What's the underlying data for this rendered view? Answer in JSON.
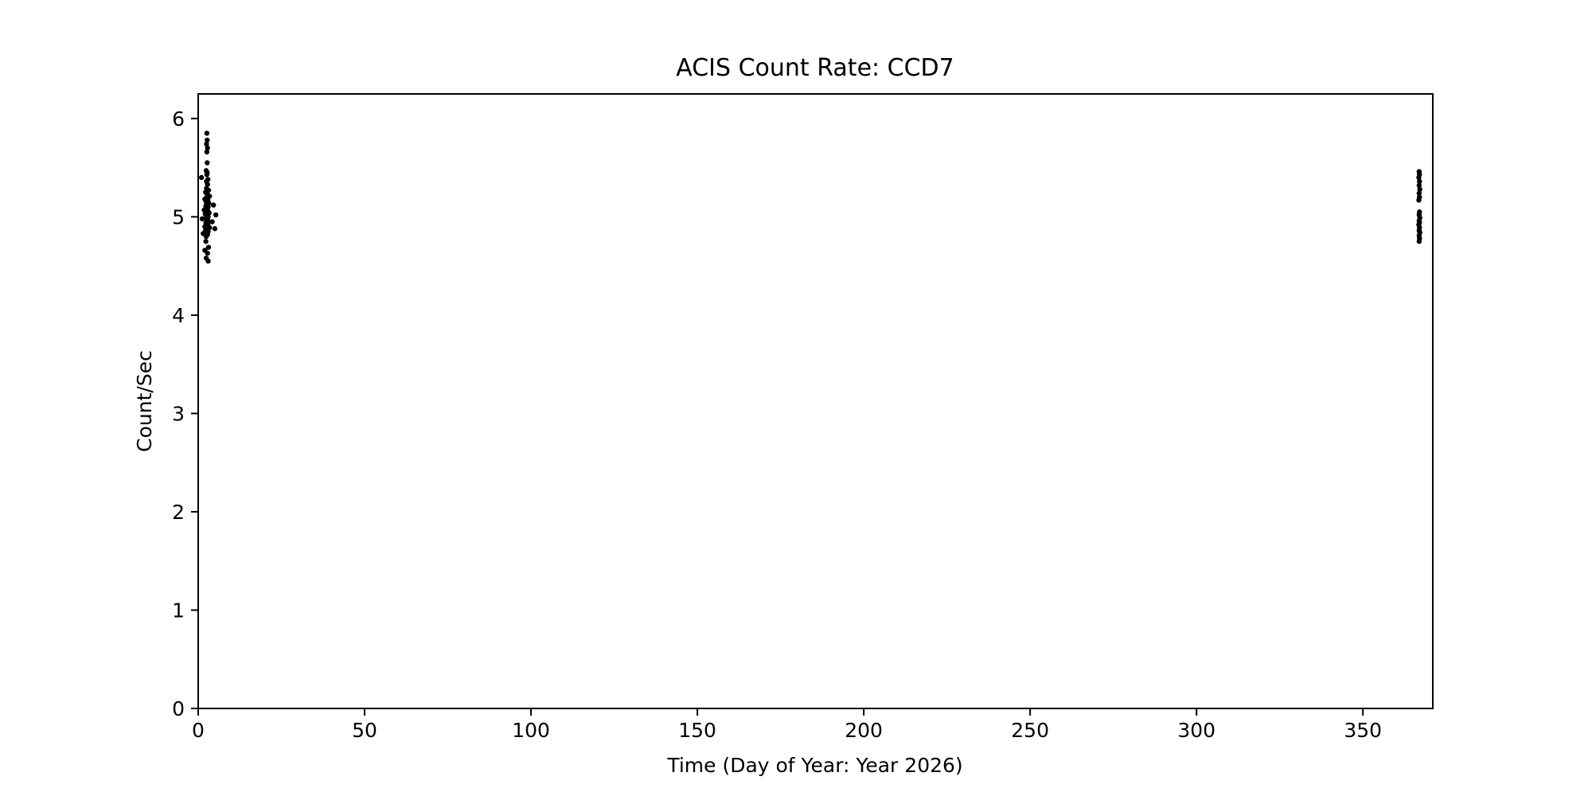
{
  "figure": {
    "background": "#ffffff",
    "foreground": "#000000"
  },
  "chart_data": {
    "type": "scatter",
    "title": "ACIS Count Rate: CCD7",
    "xlabel": "Time (Day of Year: Year 2026)",
    "ylabel": "Count/Sec",
    "xlim": [
      0,
      371
    ],
    "ylim": [
      0,
      6.25
    ],
    "xticks": [
      0,
      50,
      100,
      150,
      200,
      250,
      300,
      350
    ],
    "yticks": [
      0,
      1,
      2,
      3,
      4,
      5,
      6
    ],
    "grid": false,
    "legend": "none",
    "marker": {
      "shape": "dot",
      "color": "#000000",
      "radius_px": 3.2
    },
    "series": [
      {
        "name": "CCD7 count rate",
        "points": [
          [
            2.6,
            5.85
          ],
          [
            2.7,
            5.78
          ],
          [
            2.5,
            5.74
          ],
          [
            2.8,
            5.7
          ],
          [
            2.6,
            5.66
          ],
          [
            2.7,
            5.55
          ],
          [
            1.0,
            5.4
          ],
          [
            2.4,
            5.47
          ],
          [
            2.7,
            5.45
          ],
          [
            2.6,
            5.43
          ],
          [
            2.9,
            5.38
          ],
          [
            2.5,
            5.36
          ],
          [
            2.8,
            5.33
          ],
          [
            2.5,
            5.29
          ],
          [
            3.1,
            5.27
          ],
          [
            2.2,
            5.25
          ],
          [
            2.8,
            5.23
          ],
          [
            3.4,
            5.21
          ],
          [
            2.6,
            5.2
          ],
          [
            2.0,
            5.18
          ],
          [
            2.9,
            5.17
          ],
          [
            2.4,
            5.15
          ],
          [
            3.2,
            5.14
          ],
          [
            2.7,
            5.13
          ],
          [
            2.3,
            5.11
          ],
          [
            3.0,
            5.1
          ],
          [
            2.6,
            5.08
          ],
          [
            1.8,
            5.07
          ],
          [
            2.9,
            5.06
          ],
          [
            2.5,
            5.05
          ],
          [
            3.3,
            5.04
          ],
          [
            2.1,
            5.03
          ],
          [
            2.7,
            5.02
          ],
          [
            3.0,
            5.0
          ],
          [
            2.4,
            4.99
          ],
          [
            1.2,
            4.98
          ],
          [
            2.8,
            4.97
          ],
          [
            2.6,
            4.96
          ],
          [
            3.1,
            4.95
          ],
          [
            2.3,
            4.94
          ],
          [
            2.9,
            4.92
          ],
          [
            2.5,
            4.91
          ],
          [
            2.0,
            4.9
          ],
          [
            3.4,
            4.89
          ],
          [
            2.7,
            4.88
          ],
          [
            2.2,
            4.86
          ],
          [
            3.0,
            4.85
          ],
          [
            2.6,
            4.84
          ],
          [
            1.5,
            4.83
          ],
          [
            2.8,
            4.82
          ],
          [
            2.4,
            4.8
          ],
          [
            4.6,
            5.12
          ],
          [
            5.3,
            5.02
          ],
          [
            4.2,
            4.95
          ],
          [
            5.0,
            4.88
          ],
          [
            2.3,
            4.75
          ],
          [
            3.1,
            4.69
          ],
          [
            2.0,
            4.66
          ],
          [
            2.8,
            4.63
          ],
          [
            2.4,
            4.58
          ],
          [
            3.0,
            4.55
          ],
          [
            366.9,
            5.46
          ],
          [
            367.0,
            5.43
          ],
          [
            366.8,
            5.4
          ],
          [
            367.0,
            5.36
          ],
          [
            366.9,
            5.32
          ],
          [
            367.1,
            5.28
          ],
          [
            366.9,
            5.24
          ],
          [
            367.0,
            5.2
          ],
          [
            366.8,
            5.17
          ],
          [
            367.0,
            5.05
          ],
          [
            366.9,
            5.02
          ],
          [
            367.1,
            4.99
          ],
          [
            366.9,
            4.96
          ],
          [
            367.0,
            4.94
          ],
          [
            366.8,
            4.92
          ],
          [
            367.0,
            4.89
          ],
          [
            366.9,
            4.86
          ],
          [
            367.1,
            4.84
          ],
          [
            366.9,
            4.81
          ],
          [
            367.0,
            4.78
          ],
          [
            366.9,
            4.75
          ]
        ]
      }
    ]
  }
}
